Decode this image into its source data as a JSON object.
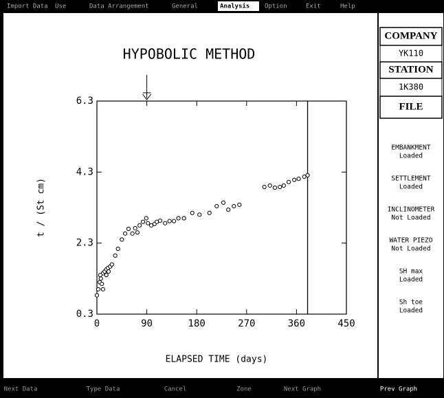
{
  "menu": {
    "items": [
      "Import Data",
      "Use",
      "Data Arrangement",
      "General",
      "Analysis",
      "Option",
      "Exit",
      "Help"
    ],
    "active": 4
  },
  "footer": {
    "items": [
      "Next Data",
      "Type Data",
      "Cancel",
      "Zone",
      "Next Graph",
      "Prev Graph"
    ]
  },
  "panel": {
    "company_label": "COMPANY",
    "company": "YK110",
    "station_label": "STATION",
    "station": "1K380",
    "file_label": "FILE",
    "files": [
      {
        "name": "EMBANKMENT",
        "status": "Loaded"
      },
      {
        "name": "SETTLEMENT",
        "status": "Loaded"
      },
      {
        "name": "INCLINOMETER",
        "status": "Not Loaded"
      },
      {
        "name": "WATER PIEZO",
        "status": "Not Loaded"
      },
      {
        "name": "SH max",
        "status": "Loaded"
      },
      {
        "name": "Sh toe",
        "status": "Loaded"
      }
    ]
  },
  "chart_data": {
    "type": "scatter",
    "title": "HYPOBOLIC METHOD",
    "x_label": "ELAPSED TIME (days)",
    "y_label": "t / (St cm)",
    "x": [
      0,
      2.5,
      5,
      7,
      11,
      14,
      17,
      20,
      24,
      27,
      6,
      11,
      9,
      17,
      21,
      33,
      38,
      45,
      51,
      57,
      64,
      69,
      73,
      77,
      83,
      89,
      92,
      98,
      104,
      108,
      114,
      123,
      131,
      139,
      147,
      157,
      172,
      185,
      203,
      216,
      228,
      237,
      247,
      257,
      302,
      312,
      321,
      330,
      337,
      346,
      356,
      364,
      374,
      380
    ],
    "values": [
      0.83,
      1.0,
      1.2,
      1.3,
      1.45,
      1.5,
      1.56,
      1.6,
      1.64,
      1.7,
      1.4,
      1.0,
      1.15,
      1.4,
      1.5,
      1.95,
      2.14,
      2.4,
      2.57,
      2.7,
      2.57,
      2.72,
      2.6,
      2.8,
      2.9,
      3.0,
      2.86,
      2.8,
      2.84,
      2.9,
      2.93,
      2.86,
      2.92,
      2.92,
      3.0,
      3.0,
      3.15,
      3.1,
      3.15,
      3.34,
      3.44,
      3.24,
      3.34,
      3.38,
      3.88,
      3.92,
      3.86,
      3.88,
      3.92,
      4.02,
      4.08,
      4.11,
      4.17,
      4.21
    ],
    "color": "#000000",
    "xlim": [
      0,
      450
    ],
    "xticks": [
      0,
      90,
      180,
      270,
      360,
      450
    ],
    "ylim": [
      0.3,
      6.3
    ],
    "yticks": [
      0.3,
      2.3,
      4.3,
      6.3
    ],
    "marker_x": 380,
    "arrow_x": 90
  }
}
